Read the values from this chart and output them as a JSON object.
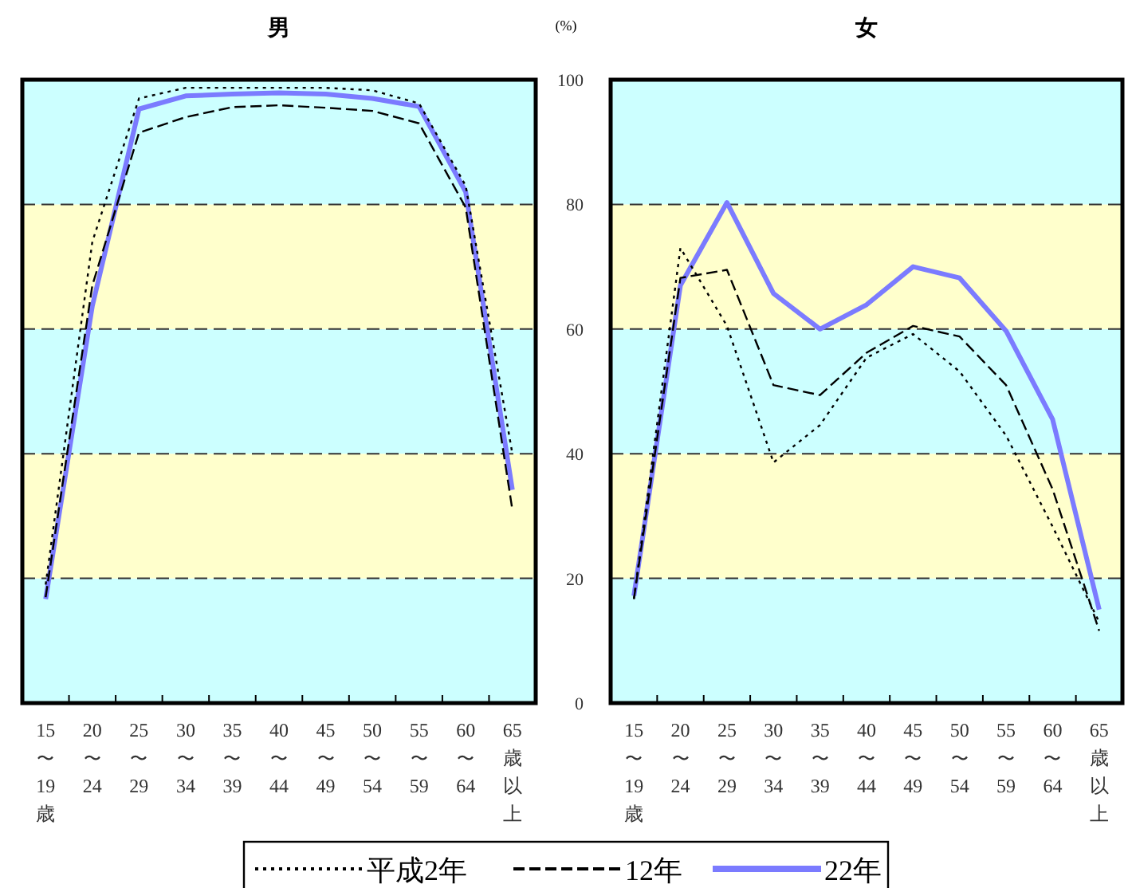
{
  "chart_data": [
    {
      "type": "line",
      "title": "男",
      "categories": [
        "15〜19歳",
        "20〜24",
        "25〜29",
        "30〜34",
        "35〜39",
        "40〜44",
        "45〜49",
        "50〜54",
        "55〜59",
        "60〜64",
        "65歳以上"
      ],
      "ylim": [
        0,
        100
      ],
      "yticks": [
        0,
        20,
        40,
        60,
        80,
        100
      ],
      "tick_labels": "x",
      "grid": "y",
      "bands": [
        {
          "axis": "y",
          "from": 0,
          "to": 20,
          "color": "#ccffff"
        },
        {
          "axis": "y",
          "from": 20,
          "to": 40,
          "color": "#ffffcc"
        },
        {
          "axis": "y",
          "from": 40,
          "to": 60,
          "color": "#ccffff"
        },
        {
          "axis": "y",
          "from": 60,
          "to": 80,
          "color": "#ffffcc"
        },
        {
          "axis": "y",
          "from": 80,
          "to": 100,
          "color": "#ccffff"
        }
      ],
      "series": [
        {
          "color": "#000000",
          "line_style": "dotted",
          "values": [
            19,
            74,
            97,
            98.7,
            98.7,
            98.7,
            98.7,
            98.3,
            96.2,
            83,
            40
          ]
        },
        {
          "color": "#000000",
          "line_style": "dashed",
          "values": [
            17,
            67,
            91.5,
            94,
            95.6,
            95.9,
            95.5,
            95,
            93,
            79.5,
            31
          ]
        },
        {
          "color": "#7b7bff",
          "line_style": "solid",
          "values": [
            16.7,
            63.7,
            95.3,
            97.4,
            97.7,
            97.9,
            97.7,
            97,
            95.7,
            82,
            34.2
          ]
        }
      ]
    },
    {
      "type": "line",
      "title": "女",
      "ylabel": "(%)",
      "categories": [
        "15〜19歳",
        "20〜24",
        "25〜29",
        "30〜34",
        "35〜39",
        "40〜44",
        "45〜49",
        "50〜54",
        "55〜59",
        "60〜64",
        "65歳以上"
      ],
      "ylim": [
        0,
        100
      ],
      "yticks": [
        0,
        20,
        40,
        60,
        80,
        100
      ],
      "grid": "y",
      "legend": "bottom",
      "bands": [
        {
          "axis": "y",
          "from": 0,
          "to": 20,
          "color": "#ccffff"
        },
        {
          "axis": "y",
          "from": 20,
          "to": 40,
          "color": "#ffffcc"
        },
        {
          "axis": "y",
          "from": 40,
          "to": 60,
          "color": "#ccffff"
        },
        {
          "axis": "y",
          "from": 60,
          "to": 80,
          "color": "#ffffcc"
        },
        {
          "axis": "y",
          "from": 80,
          "to": 100,
          "color": "#ccffff"
        }
      ],
      "series": [
        {
          "name": "平成2年",
          "color": "#000000",
          "line_style": "dotted",
          "values": [
            16.7,
            73,
            60.5,
            38.6,
            44.6,
            55.4,
            59.2,
            53.2,
            42.9,
            28.3,
            13
          ]
        },
        {
          "name": "12年",
          "color": "#000000",
          "line_style": "dashed",
          "values": [
            16.7,
            68.2,
            69.5,
            51,
            49.4,
            56.2,
            60.5,
            58.8,
            51,
            34.3,
            11.6
          ]
        },
        {
          "name": "22年",
          "color": "#7b7bff",
          "line_style": "solid",
          "values": [
            17.2,
            67,
            80.3,
            65.7,
            60,
            63.9,
            70,
            68.2,
            59.7,
            45.5,
            15
          ]
        }
      ]
    }
  ]
}
